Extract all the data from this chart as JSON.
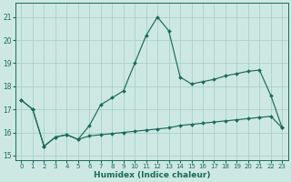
{
  "xlabel": "Humidex (Indice chaleur)",
  "xlim": [
    -0.5,
    23.5
  ],
  "ylim": [
    14.8,
    21.6
  ],
  "yticks": [
    15,
    16,
    17,
    18,
    19,
    20,
    21
  ],
  "xticks": [
    0,
    1,
    2,
    3,
    4,
    5,
    6,
    7,
    8,
    9,
    10,
    11,
    12,
    13,
    14,
    15,
    16,
    17,
    18,
    19,
    20,
    21,
    22,
    23
  ],
  "bg_color": "#cde8e2",
  "grid_color": "#aacfc8",
  "line_color": "#1a6b5a",
  "line1_x": [
    0,
    1,
    2,
    3,
    4,
    5,
    6,
    7,
    8,
    9,
    10,
    11,
    12,
    13,
    14,
    15,
    16,
    17,
    18,
    19,
    20,
    21,
    22,
    23
  ],
  "line1_y": [
    17.4,
    17.0,
    15.4,
    15.8,
    15.9,
    15.7,
    16.3,
    17.2,
    17.5,
    17.8,
    19.0,
    20.2,
    21.0,
    20.4,
    18.4,
    18.1,
    18.2,
    18.3,
    18.45,
    18.55,
    18.65,
    18.7,
    17.6,
    16.2
  ],
  "line2_x": [
    0,
    1,
    2,
    3,
    4,
    5,
    6,
    7,
    8,
    9,
    10,
    11,
    12,
    13,
    14,
    15,
    16,
    17,
    18,
    19,
    20,
    21,
    22,
    23
  ],
  "line2_y": [
    17.4,
    17.0,
    15.4,
    15.8,
    15.9,
    15.7,
    15.85,
    15.9,
    15.95,
    16.0,
    16.05,
    16.1,
    16.15,
    16.2,
    16.3,
    16.35,
    16.4,
    16.45,
    16.5,
    16.55,
    16.6,
    16.65,
    16.7,
    16.2
  ]
}
